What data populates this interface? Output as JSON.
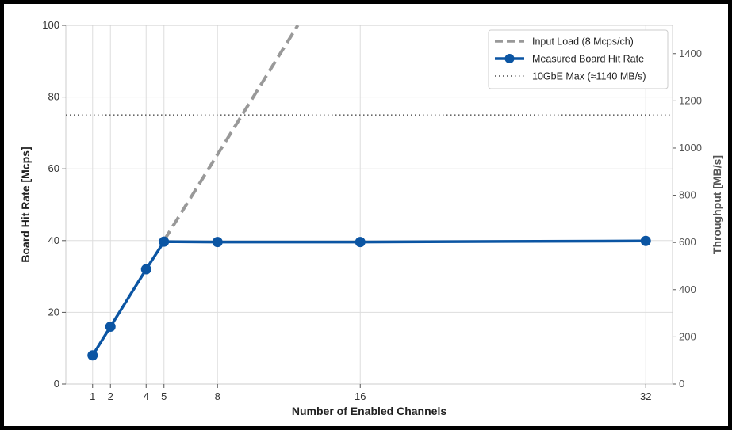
{
  "chart_data": {
    "type": "line",
    "title": "",
    "xlabel": "Number of Enabled Channels",
    "ylabel": "Board Hit Rate [Mcps]",
    "y2label": "Throughput [MB/s]",
    "x_ticks": [
      1,
      2,
      4,
      5,
      8,
      16,
      32
    ],
    "y_ticks": [
      0,
      20,
      40,
      60,
      80,
      100
    ],
    "y2_ticks": [
      0,
      200,
      400,
      600,
      800,
      1000,
      1200,
      1400
    ],
    "xlim": [
      -0.5,
      33.5
    ],
    "ylim": [
      0,
      100
    ],
    "y2lim": [
      0,
      1520
    ],
    "grid": true,
    "legend_position": "top-right",
    "series": [
      {
        "name": "Input Load (8 Mcps/ch)",
        "style": "dashed",
        "color": "#999999",
        "x": [
          5,
          8,
          12.5
        ],
        "y": [
          40,
          64,
          100
        ]
      },
      {
        "name": "Measured Board Hit Rate",
        "style": "solid-markers",
        "color": "#0b55a3",
        "x": [
          1,
          2,
          4,
          5,
          8,
          16,
          32
        ],
        "y": [
          8,
          16,
          32,
          39.7,
          39.6,
          39.6,
          39.9
        ]
      }
    ],
    "reference_lines": [
      {
        "name": "10GbE Max (≈1140 MB/s)",
        "style": "dotted",
        "color": "#666666",
        "axis": "y2",
        "value": 1140
      }
    ]
  }
}
